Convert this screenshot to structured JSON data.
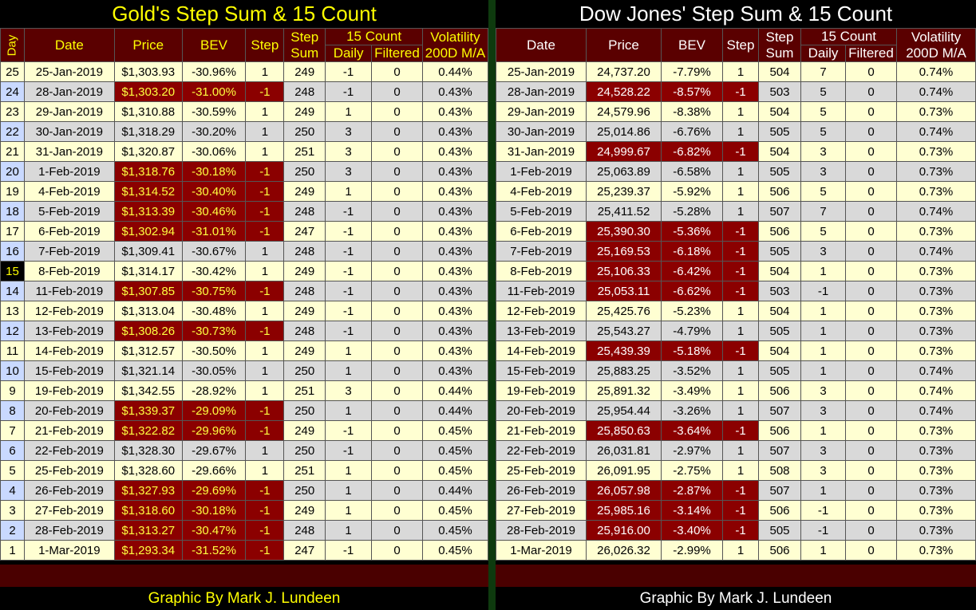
{
  "gold": {
    "title": "Gold's Step Sum & 15 Count",
    "headers": {
      "day": "Day",
      "date": "Date",
      "price": "Price",
      "bev": "BEV",
      "step": "Step",
      "stepsum1": "Step",
      "stepsum2": "Sum",
      "count": "15 Count",
      "daily": "Daily",
      "filtered": "Filtered",
      "vol1": "Volatility",
      "vol2": "200D M/A"
    },
    "footer": "Graphic By Mark J. Lundeen",
    "rows": [
      {
        "day": "25",
        "date": "25-Jan-2019",
        "price": "$1,303.93",
        "bev": "-30.96%",
        "step": "1",
        "sum": "249",
        "daily": "-1",
        "filtered": "0",
        "vol": "0.44%"
      },
      {
        "day": "24",
        "date": "28-Jan-2019",
        "price": "$1,303.20",
        "bev": "-31.00%",
        "step": "-1",
        "sum": "248",
        "daily": "-1",
        "filtered": "0",
        "vol": "0.43%"
      },
      {
        "day": "23",
        "date": "29-Jan-2019",
        "price": "$1,310.88",
        "bev": "-30.59%",
        "step": "1",
        "sum": "249",
        "daily": "1",
        "filtered": "0",
        "vol": "0.43%"
      },
      {
        "day": "22",
        "date": "30-Jan-2019",
        "price": "$1,318.29",
        "bev": "-30.20%",
        "step": "1",
        "sum": "250",
        "daily": "3",
        "filtered": "0",
        "vol": "0.43%"
      },
      {
        "day": "21",
        "date": "31-Jan-2019",
        "price": "$1,320.87",
        "bev": "-30.06%",
        "step": "1",
        "sum": "251",
        "daily": "3",
        "filtered": "0",
        "vol": "0.43%"
      },
      {
        "day": "20",
        "date": "1-Feb-2019",
        "price": "$1,318.76",
        "bev": "-30.18%",
        "step": "-1",
        "sum": "250",
        "daily": "3",
        "filtered": "0",
        "vol": "0.43%"
      },
      {
        "day": "19",
        "date": "4-Feb-2019",
        "price": "$1,314.52",
        "bev": "-30.40%",
        "step": "-1",
        "sum": "249",
        "daily": "1",
        "filtered": "0",
        "vol": "0.43%"
      },
      {
        "day": "18",
        "date": "5-Feb-2019",
        "price": "$1,313.39",
        "bev": "-30.46%",
        "step": "-1",
        "sum": "248",
        "daily": "-1",
        "filtered": "0",
        "vol": "0.43%"
      },
      {
        "day": "17",
        "date": "6-Feb-2019",
        "price": "$1,302.94",
        "bev": "-31.01%",
        "step": "-1",
        "sum": "247",
        "daily": "-1",
        "filtered": "0",
        "vol": "0.43%"
      },
      {
        "day": "16",
        "date": "7-Feb-2019",
        "price": "$1,309.41",
        "bev": "-30.67%",
        "step": "1",
        "sum": "248",
        "daily": "-1",
        "filtered": "0",
        "vol": "0.43%"
      },
      {
        "day": "15",
        "date": "8-Feb-2019",
        "price": "$1,314.17",
        "bev": "-30.42%",
        "step": "1",
        "sum": "249",
        "daily": "-1",
        "filtered": "0",
        "vol": "0.43%"
      },
      {
        "day": "14",
        "date": "11-Feb-2019",
        "price": "$1,307.85",
        "bev": "-30.75%",
        "step": "-1",
        "sum": "248",
        "daily": "-1",
        "filtered": "0",
        "vol": "0.43%"
      },
      {
        "day": "13",
        "date": "12-Feb-2019",
        "price": "$1,313.04",
        "bev": "-30.48%",
        "step": "1",
        "sum": "249",
        "daily": "-1",
        "filtered": "0",
        "vol": "0.43%"
      },
      {
        "day": "12",
        "date": "13-Feb-2019",
        "price": "$1,308.26",
        "bev": "-30.73%",
        "step": "-1",
        "sum": "248",
        "daily": "-1",
        "filtered": "0",
        "vol": "0.43%"
      },
      {
        "day": "11",
        "date": "14-Feb-2019",
        "price": "$1,312.57",
        "bev": "-30.50%",
        "step": "1",
        "sum": "249",
        "daily": "1",
        "filtered": "0",
        "vol": "0.43%"
      },
      {
        "day": "10",
        "date": "15-Feb-2019",
        "price": "$1,321.14",
        "bev": "-30.05%",
        "step": "1",
        "sum": "250",
        "daily": "1",
        "filtered": "0",
        "vol": "0.43%"
      },
      {
        "day": "9",
        "date": "19-Feb-2019",
        "price": "$1,342.55",
        "bev": "-28.92%",
        "step": "1",
        "sum": "251",
        "daily": "3",
        "filtered": "0",
        "vol": "0.44%"
      },
      {
        "day": "8",
        "date": "20-Feb-2019",
        "price": "$1,339.37",
        "bev": "-29.09%",
        "step": "-1",
        "sum": "250",
        "daily": "1",
        "filtered": "0",
        "vol": "0.44%"
      },
      {
        "day": "7",
        "date": "21-Feb-2019",
        "price": "$1,322.82",
        "bev": "-29.96%",
        "step": "-1",
        "sum": "249",
        "daily": "-1",
        "filtered": "0",
        "vol": "0.45%"
      },
      {
        "day": "6",
        "date": "22-Feb-2019",
        "price": "$1,328.30",
        "bev": "-29.67%",
        "step": "1",
        "sum": "250",
        "daily": "-1",
        "filtered": "0",
        "vol": "0.45%"
      },
      {
        "day": "5",
        "date": "25-Feb-2019",
        "price": "$1,328.60",
        "bev": "-29.66%",
        "step": "1",
        "sum": "251",
        "daily": "1",
        "filtered": "0",
        "vol": "0.45%"
      },
      {
        "day": "4",
        "date": "26-Feb-2019",
        "price": "$1,327.93",
        "bev": "-29.69%",
        "step": "-1",
        "sum": "250",
        "daily": "1",
        "filtered": "0",
        "vol": "0.44%"
      },
      {
        "day": "3",
        "date": "27-Feb-2019",
        "price": "$1,318.60",
        "bev": "-30.18%",
        "step": "-1",
        "sum": "249",
        "daily": "1",
        "filtered": "0",
        "vol": "0.45%"
      },
      {
        "day": "2",
        "date": "28-Feb-2019",
        "price": "$1,313.27",
        "bev": "-30.47%",
        "step": "-1",
        "sum": "248",
        "daily": "1",
        "filtered": "0",
        "vol": "0.45%"
      },
      {
        "day": "1",
        "date": "1-Mar-2019",
        "price": "$1,293.34",
        "bev": "-31.52%",
        "step": "-1",
        "sum": "247",
        "daily": "-1",
        "filtered": "0",
        "vol": "0.45%"
      }
    ]
  },
  "dow": {
    "title": "Dow Jones' Step Sum & 15 Count",
    "headers": {
      "date": "Date",
      "price": "Price",
      "bev": "BEV",
      "step": "Step",
      "stepsum1": "Step",
      "stepsum2": "Sum",
      "count": "15 Count",
      "daily": "Daily",
      "filtered": "Filtered",
      "vol1": "Volatility",
      "vol2": "200D M/A"
    },
    "footer": "Graphic By Mark J. Lundeen",
    "rows": [
      {
        "date": "25-Jan-2019",
        "price": "24,737.20",
        "bev": "-7.79%",
        "step": "1",
        "sum": "504",
        "daily": "7",
        "filtered": "0",
        "vol": "0.74%"
      },
      {
        "date": "28-Jan-2019",
        "price": "24,528.22",
        "bev": "-8.57%",
        "step": "-1",
        "sum": "503",
        "daily": "5",
        "filtered": "0",
        "vol": "0.74%"
      },
      {
        "date": "29-Jan-2019",
        "price": "24,579.96",
        "bev": "-8.38%",
        "step": "1",
        "sum": "504",
        "daily": "5",
        "filtered": "0",
        "vol": "0.73%"
      },
      {
        "date": "30-Jan-2019",
        "price": "25,014.86",
        "bev": "-6.76%",
        "step": "1",
        "sum": "505",
        "daily": "5",
        "filtered": "0",
        "vol": "0.74%"
      },
      {
        "date": "31-Jan-2019",
        "price": "24,999.67",
        "bev": "-6.82%",
        "step": "-1",
        "sum": "504",
        "daily": "3",
        "filtered": "0",
        "vol": "0.73%"
      },
      {
        "date": "1-Feb-2019",
        "price": "25,063.89",
        "bev": "-6.58%",
        "step": "1",
        "sum": "505",
        "daily": "3",
        "filtered": "0",
        "vol": "0.73%"
      },
      {
        "date": "4-Feb-2019",
        "price": "25,239.37",
        "bev": "-5.92%",
        "step": "1",
        "sum": "506",
        "daily": "5",
        "filtered": "0",
        "vol": "0.73%"
      },
      {
        "date": "5-Feb-2019",
        "price": "25,411.52",
        "bev": "-5.28%",
        "step": "1",
        "sum": "507",
        "daily": "7",
        "filtered": "0",
        "vol": "0.74%"
      },
      {
        "date": "6-Feb-2019",
        "price": "25,390.30",
        "bev": "-5.36%",
        "step": "-1",
        "sum": "506",
        "daily": "5",
        "filtered": "0",
        "vol": "0.73%"
      },
      {
        "date": "7-Feb-2019",
        "price": "25,169.53",
        "bev": "-6.18%",
        "step": "-1",
        "sum": "505",
        "daily": "3",
        "filtered": "0",
        "vol": "0.74%"
      },
      {
        "date": "8-Feb-2019",
        "price": "25,106.33",
        "bev": "-6.42%",
        "step": "-1",
        "sum": "504",
        "daily": "1",
        "filtered": "0",
        "vol": "0.73%"
      },
      {
        "date": "11-Feb-2019",
        "price": "25,053.11",
        "bev": "-6.62%",
        "step": "-1",
        "sum": "503",
        "daily": "-1",
        "filtered": "0",
        "vol": "0.73%"
      },
      {
        "date": "12-Feb-2019",
        "price": "25,425.76",
        "bev": "-5.23%",
        "step": "1",
        "sum": "504",
        "daily": "1",
        "filtered": "0",
        "vol": "0.73%"
      },
      {
        "date": "13-Feb-2019",
        "price": "25,543.27",
        "bev": "-4.79%",
        "step": "1",
        "sum": "505",
        "daily": "1",
        "filtered": "0",
        "vol": "0.73%"
      },
      {
        "date": "14-Feb-2019",
        "price": "25,439.39",
        "bev": "-5.18%",
        "step": "-1",
        "sum": "504",
        "daily": "1",
        "filtered": "0",
        "vol": "0.73%"
      },
      {
        "date": "15-Feb-2019",
        "price": "25,883.25",
        "bev": "-3.52%",
        "step": "1",
        "sum": "505",
        "daily": "1",
        "filtered": "0",
        "vol": "0.74%"
      },
      {
        "date": "19-Feb-2019",
        "price": "25,891.32",
        "bev": "-3.49%",
        "step": "1",
        "sum": "506",
        "daily": "3",
        "filtered": "0",
        "vol": "0.74%"
      },
      {
        "date": "20-Feb-2019",
        "price": "25,954.44",
        "bev": "-3.26%",
        "step": "1",
        "sum": "507",
        "daily": "3",
        "filtered": "0",
        "vol": "0.74%"
      },
      {
        "date": "21-Feb-2019",
        "price": "25,850.63",
        "bev": "-3.64%",
        "step": "-1",
        "sum": "506",
        "daily": "1",
        "filtered": "0",
        "vol": "0.73%"
      },
      {
        "date": "22-Feb-2019",
        "price": "26,031.81",
        "bev": "-2.97%",
        "step": "1",
        "sum": "507",
        "daily": "3",
        "filtered": "0",
        "vol": "0.73%"
      },
      {
        "date": "25-Feb-2019",
        "price": "26,091.95",
        "bev": "-2.75%",
        "step": "1",
        "sum": "508",
        "daily": "3",
        "filtered": "0",
        "vol": "0.73%"
      },
      {
        "date": "26-Feb-2019",
        "price": "26,057.98",
        "bev": "-2.87%",
        "step": "-1",
        "sum": "507",
        "daily": "1",
        "filtered": "0",
        "vol": "0.73%"
      },
      {
        "date": "27-Feb-2019",
        "price": "25,985.16",
        "bev": "-3.14%",
        "step": "-1",
        "sum": "506",
        "daily": "-1",
        "filtered": "0",
        "vol": "0.73%"
      },
      {
        "date": "28-Feb-2019",
        "price": "25,916.00",
        "bev": "-3.40%",
        "step": "-1",
        "sum": "505",
        "daily": "-1",
        "filtered": "0",
        "vol": "0.73%"
      },
      {
        "date": "1-Mar-2019",
        "price": "26,026.32",
        "bev": "-2.99%",
        "step": "1",
        "sum": "506",
        "daily": "1",
        "filtered": "0",
        "vol": "0.73%"
      }
    ]
  }
}
